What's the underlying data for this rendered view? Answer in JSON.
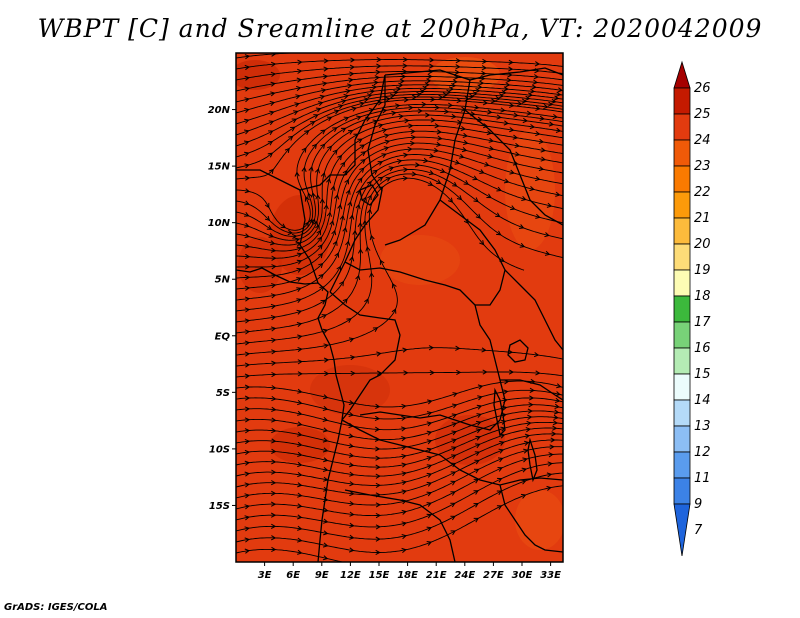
{
  "title": "WBPT [C] and Sreamline at 200hPa, VT: 2020042009",
  "credit": "GrADS: IGES/COLA",
  "map": {
    "lon_range": [
      0,
      34.3
    ],
    "lat_range": [
      -20,
      25
    ],
    "background_color": "#e23b0f",
    "lat_ticks": [
      {
        "value": 20,
        "label": "20N"
      },
      {
        "value": 15,
        "label": "15N"
      },
      {
        "value": 10,
        "label": "10N"
      },
      {
        "value": 5,
        "label": "5N"
      },
      {
        "value": 0,
        "label": "EQ"
      },
      {
        "value": -5,
        "label": "5S"
      },
      {
        "value": -10,
        "label": "10S"
      },
      {
        "value": -15,
        "label": "15S"
      }
    ],
    "lon_ticks": [
      {
        "value": 3,
        "label": "3E"
      },
      {
        "value": 6,
        "label": "6E"
      },
      {
        "value": 9,
        "label": "9E"
      },
      {
        "value": 12,
        "label": "12E"
      },
      {
        "value": 15,
        "label": "15E"
      },
      {
        "value": 18,
        "label": "18E"
      },
      {
        "value": 21,
        "label": "21E"
      },
      {
        "value": 24,
        "label": "24E"
      },
      {
        "value": 27,
        "label": "27E"
      },
      {
        "value": 30,
        "label": "30E"
      },
      {
        "value": 33,
        "label": "33E"
      }
    ]
  },
  "colorbar": {
    "levels": [
      "26",
      "25",
      "24",
      "23",
      "22",
      "21",
      "20",
      "19",
      "18",
      "17",
      "16",
      "15",
      "14",
      "13",
      "12",
      "11",
      "9",
      "7"
    ],
    "colors": [
      "#a50000",
      "#c41a00",
      "#e23b0f",
      "#f05a08",
      "#fa7a00",
      "#fc9a0a",
      "#fcbb3c",
      "#fddc78",
      "#fdfcb4",
      "#3cb93c",
      "#78d278",
      "#b4ecb4",
      "#ecfcfc",
      "#b4daf8",
      "#8cbef5",
      "#5a9cee",
      "#3c82e6",
      "#1e64dc"
    ]
  }
}
